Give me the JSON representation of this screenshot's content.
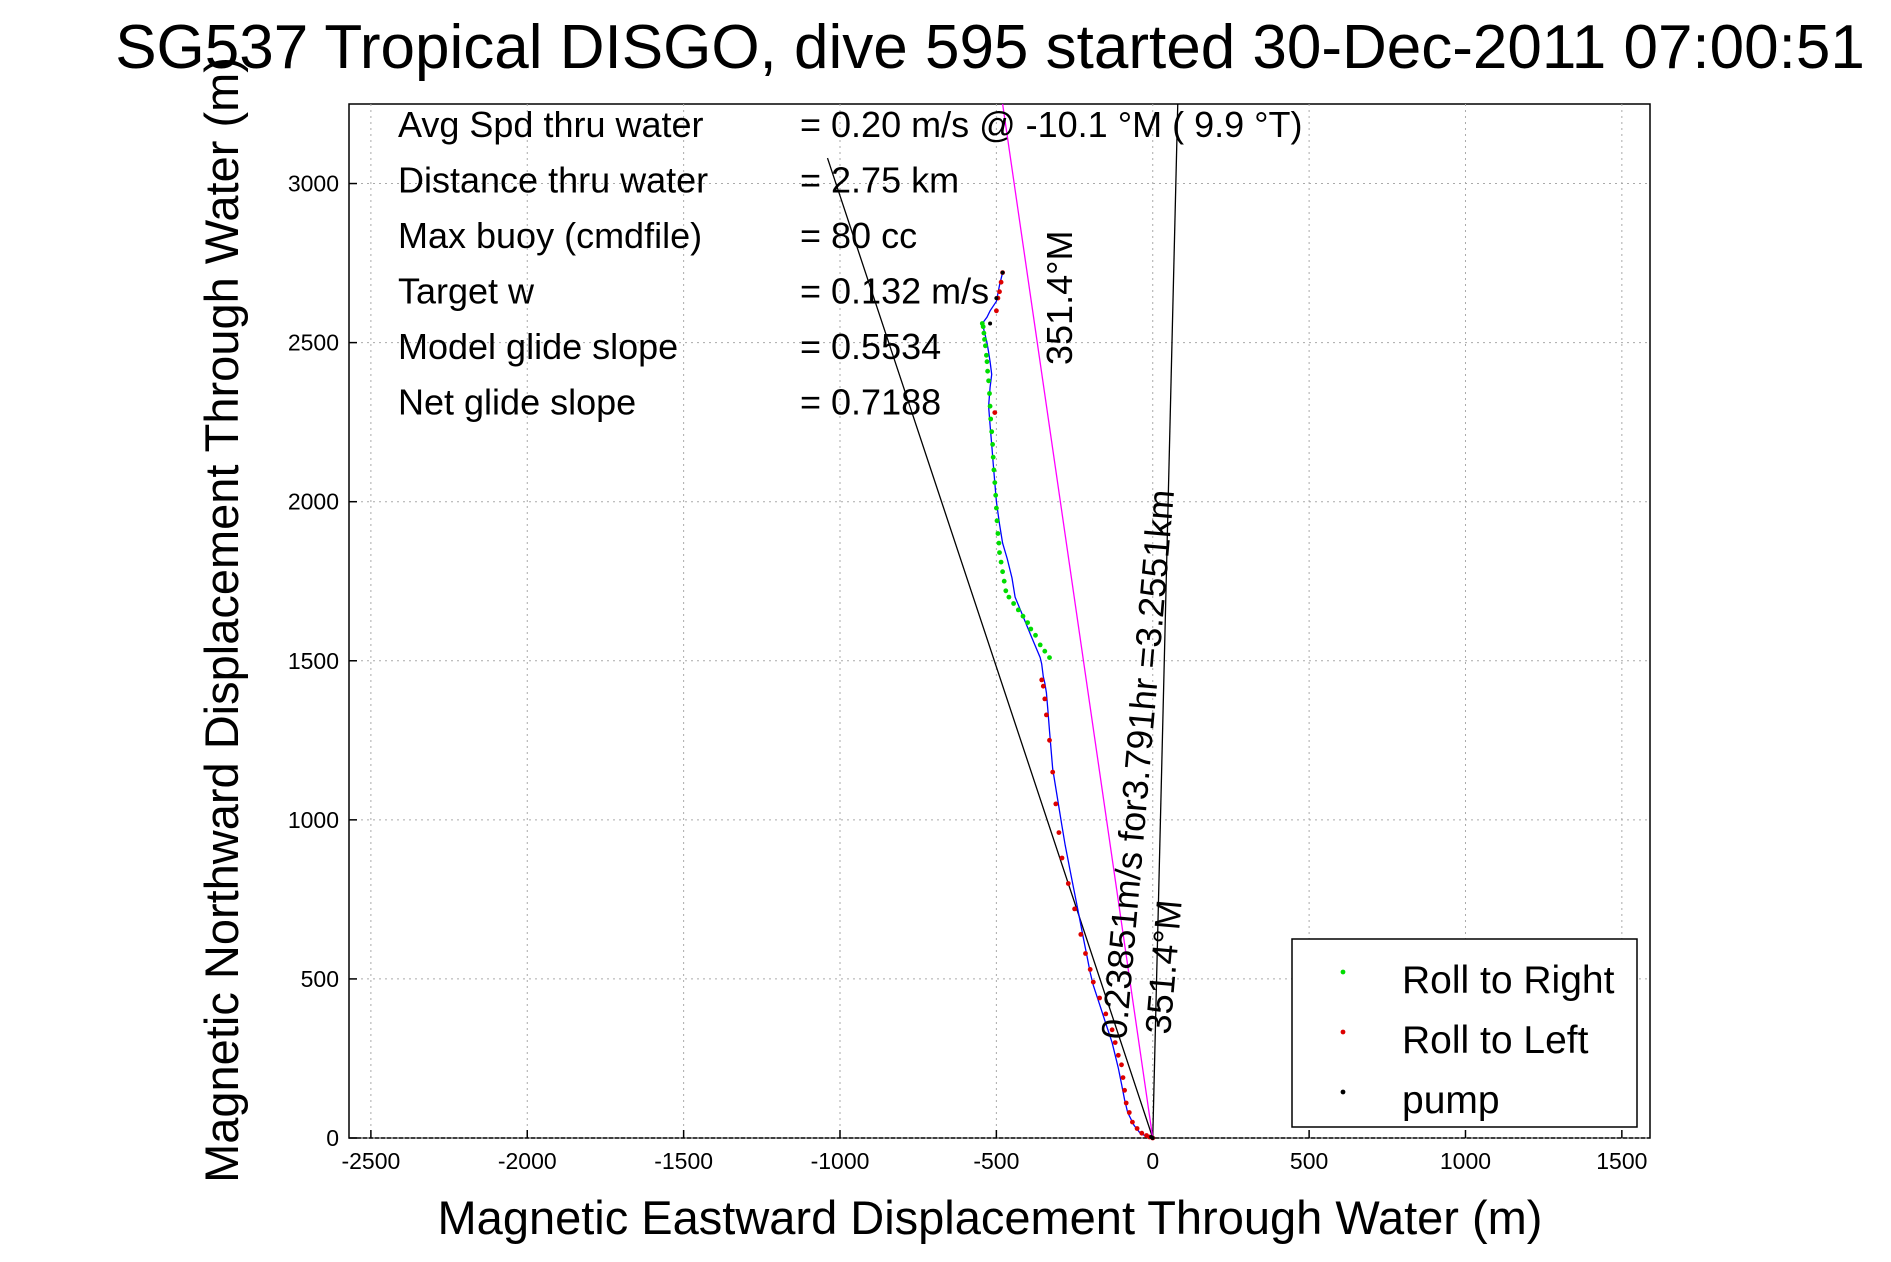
{
  "chart_data": {
    "type": "scatter",
    "title": "SG537 Tropical DISGO, dive 595 started 30-Dec-2011 07:00:51",
    "xlabel": "Magnetic Eastward Displacement Through Water (m)",
    "ylabel": "Magnetic Northward Displacement Through Water (m)",
    "xlim": [
      -2570,
      1590
    ],
    "ylim": [
      0,
      3250
    ],
    "xticks": [
      -2500,
      -2000,
      -1500,
      -1000,
      -500,
      0,
      500,
      1000,
      1500
    ],
    "yticks": [
      0,
      500,
      1000,
      1500,
      2000,
      2500,
      3000
    ],
    "grid": true,
    "legend_position": "bottom-right",
    "stats": [
      {
        "label": "Avg Spd thru water",
        "value": "=  0.20 m/s @ -10.1 °M (  9.9 °T)"
      },
      {
        "label": "Distance thru water",
        "value": "=  2.75 km"
      },
      {
        "label": "Max buoy (cmdfile)",
        "value": "= 80 cc"
      },
      {
        "label": "Target w",
        "value": "= 0.132 m/s"
      },
      {
        "label": "Model glide slope",
        "value": "= 0.5534"
      },
      {
        "label": "Net glide slope",
        "value": "= 0.7188"
      }
    ],
    "annotations": {
      "heading_far": "351.4°M",
      "current": "0.23851m/s for3.791hr =3.2551km",
      "heading_near": "351.4°M"
    },
    "reference_lines": [
      {
        "x": [
          0,
          -1040
        ],
        "y": [
          0,
          3080
        ],
        "color": "#000000"
      },
      {
        "x": [
          0,
          80
        ],
        "y": [
          0,
          3250
        ],
        "color": "#000000"
      },
      {
        "x": [
          0,
          -480
        ],
        "y": [
          0,
          3250
        ],
        "color": "#ff00ff"
      }
    ],
    "track": {
      "color": "#0000ff",
      "x": [
        0,
        -20,
        -40,
        -60,
        -80,
        -90,
        -100,
        -110,
        -120,
        -130,
        -150,
        -170,
        -190,
        -200,
        -210,
        -220,
        -240,
        -260,
        -280,
        -290,
        -300,
        -310,
        -320,
        -325,
        -330,
        -335,
        -340,
        -345,
        -350,
        -355,
        -360,
        -390,
        -415,
        -440,
        -450,
        -465,
        -480,
        -490,
        -500,
        -505,
        -510,
        -515,
        -520,
        -525,
        -520,
        -515,
        -520,
        -525,
        -530,
        -540,
        -545,
        -530,
        -520,
        -500,
        -490,
        -480
      ],
      "y": [
        0,
        5,
        15,
        40,
        80,
        120,
        170,
        220,
        260,
        300,
        360,
        420,
        480,
        520,
        570,
        620,
        720,
        820,
        920,
        980,
        1040,
        1100,
        1160,
        1220,
        1280,
        1340,
        1400,
        1430,
        1450,
        1490,
        1510,
        1580,
        1640,
        1700,
        1760,
        1820,
        1870,
        1930,
        2000,
        2060,
        2120,
        2180,
        2240,
        2300,
        2360,
        2400,
        2440,
        2470,
        2500,
        2540,
        2560,
        2580,
        2600,
        2630,
        2680,
        2720
      ]
    },
    "series": [
      {
        "name": "Roll to Right",
        "color": "#00dd00",
        "marker": "dot",
        "x": [
          -330,
          -345,
          -360,
          -375,
          -390,
          -400,
          -415,
          -430,
          -445,
          -460,
          -470,
          -475,
          -480,
          -485,
          -490,
          -492,
          -495,
          -498,
          -500,
          -502,
          -505,
          -508,
          -510,
          -512,
          -515,
          -518,
          -520,
          -522,
          -525,
          -528,
          -530,
          -532,
          -535,
          -538,
          -540,
          -542,
          -545
        ],
        "y": [
          1510,
          1530,
          1550,
          1580,
          1600,
          1620,
          1640,
          1660,
          1680,
          1700,
          1720,
          1750,
          1780,
          1810,
          1840,
          1870,
          1900,
          1940,
          1980,
          2020,
          2060,
          2100,
          2140,
          2180,
          2220,
          2260,
          2300,
          2340,
          2380,
          2410,
          2440,
          2460,
          2490,
          2510,
          2530,
          2550,
          2560
        ]
      },
      {
        "name": "Roll to Left",
        "color": "#dd0000",
        "marker": "dot",
        "x": [
          0,
          -10,
          -20,
          -35,
          -50,
          -65,
          -75,
          -85,
          -90,
          -95,
          -100,
          -110,
          -120,
          -130,
          -150,
          -170,
          -190,
          -200,
          -215,
          -230,
          -250,
          -270,
          -290,
          -300,
          -310,
          -320,
          -330,
          -340,
          -345,
          -350,
          -355,
          -505,
          -500,
          -495,
          -490,
          -485,
          -480
        ],
        "y": [
          0,
          3,
          8,
          15,
          30,
          50,
          80,
          110,
          150,
          190,
          230,
          260,
          300,
          340,
          390,
          440,
          490,
          530,
          580,
          640,
          720,
          800,
          880,
          960,
          1050,
          1150,
          1250,
          1330,
          1380,
          1420,
          1440,
          2280,
          2600,
          2640,
          2660,
          2690,
          2720
        ]
      },
      {
        "name": "pump",
        "color": "#000000",
        "marker": "dot",
        "x": [
          0,
          -5,
          -480,
          -500,
          -520
        ],
        "y": [
          0,
          3,
          2720,
          2640,
          2560
        ]
      }
    ]
  }
}
